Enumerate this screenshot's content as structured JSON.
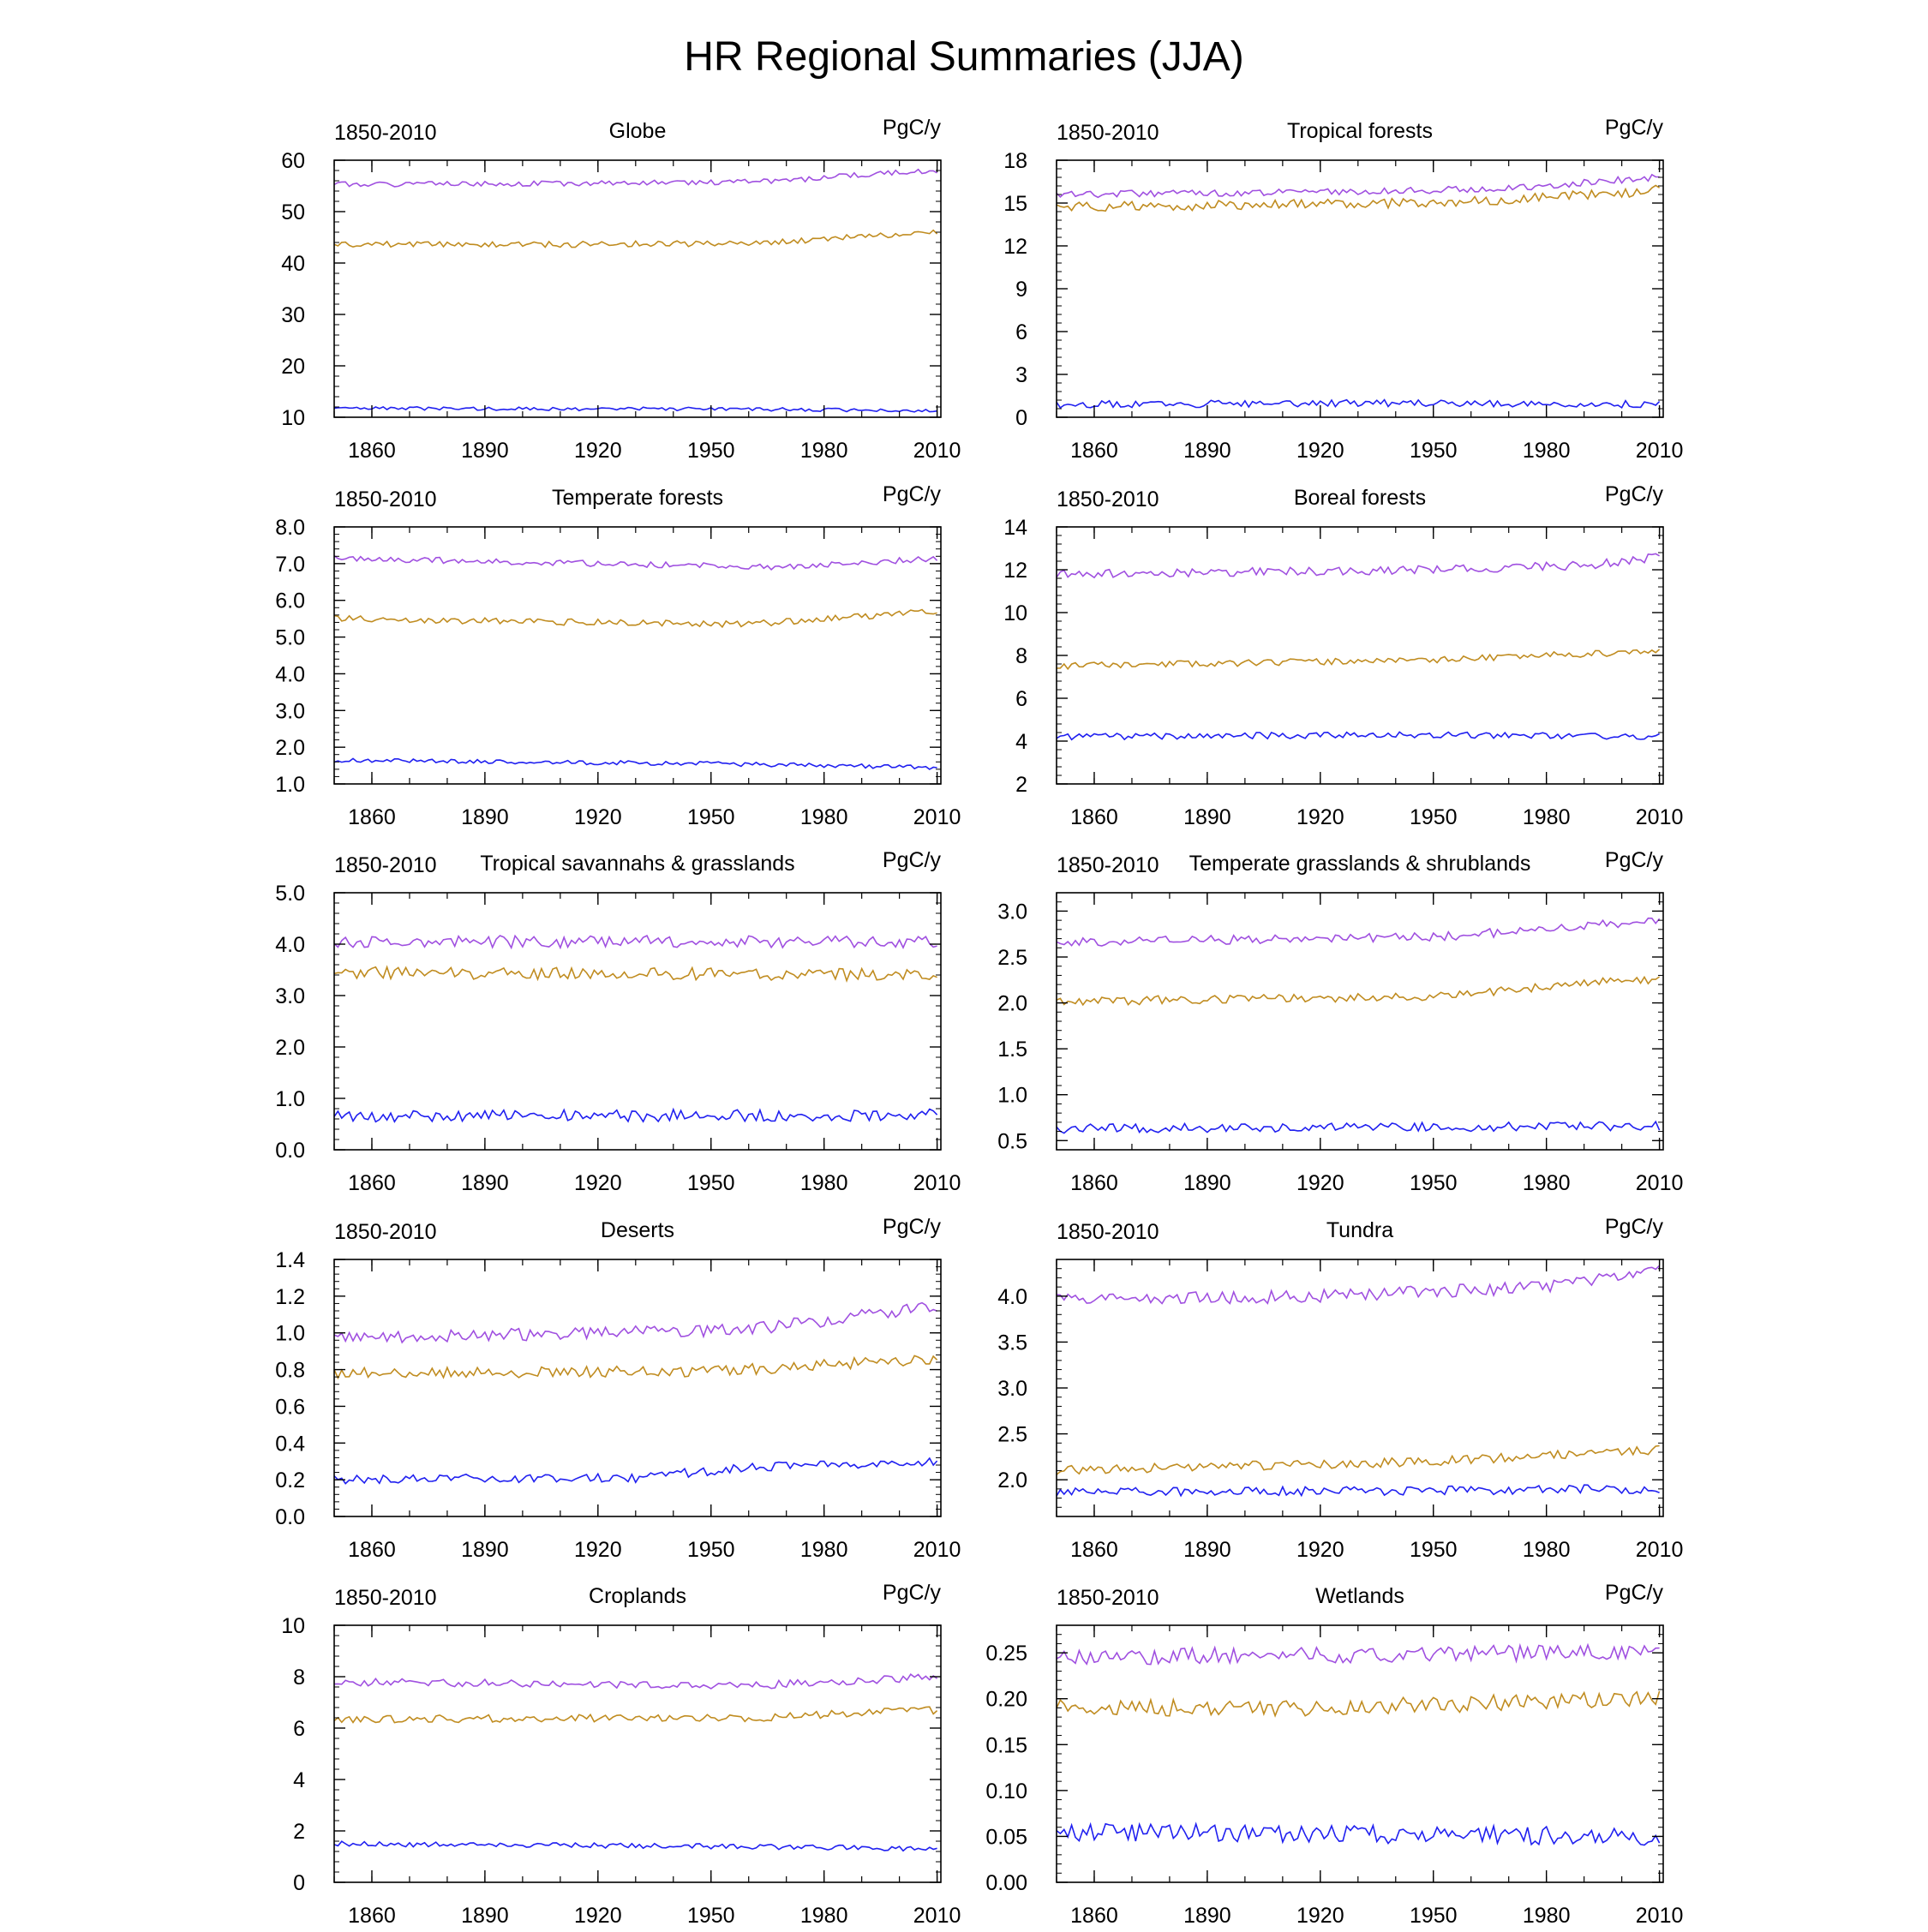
{
  "page_title": "HR Regional Summaries (JJA)",
  "colors": {
    "upper": "#a050e0",
    "middle": "#c08c20",
    "lower": "#2020f0",
    "axis": "#000000"
  },
  "chart_data": [
    {
      "type": "line",
      "title": "Globe",
      "period_label": "1850-2010",
      "units_label": "PgC/y",
      "xlim": [
        1850,
        2011
      ],
      "x_ticks": [
        1860,
        1890,
        1920,
        1950,
        1980,
        2010
      ],
      "ylim": [
        10,
        60
      ],
      "y_ticks": [
        10,
        20,
        30,
        40,
        50,
        60
      ],
      "y_tick_labels": [
        "10",
        "20",
        "30",
        "40",
        "50",
        "60"
      ],
      "series": [
        {
          "trend": [
            [
              1850,
              55.3
            ],
            [
              1900,
              55.4
            ],
            [
              1950,
              55.7
            ],
            [
              1970,
              56.0
            ],
            [
              1990,
              57.2
            ],
            [
              2010,
              58.0
            ]
          ],
          "noise": 0.5,
          "seed": 1
        },
        {
          "trend": [
            [
              1850,
              43.6
            ],
            [
              1900,
              43.6
            ],
            [
              1950,
              43.8
            ],
            [
              1970,
              44.2
            ],
            [
              1990,
              45.2
            ],
            [
              2010,
              46.0
            ]
          ],
          "noise": 0.6,
          "seed": 2
        },
        {
          "trend": [
            [
              1850,
              11.7
            ],
            [
              1950,
              11.6
            ],
            [
              2010,
              11.3
            ]
          ],
          "noise": 0.35,
          "seed": 3
        }
      ]
    },
    {
      "type": "line",
      "title": "Tropical forests",
      "period_label": "1850-2010",
      "units_label": "PgC/y",
      "xlim": [
        1850,
        2011
      ],
      "x_ticks": [
        1860,
        1890,
        1920,
        1950,
        1980,
        2010
      ],
      "ylim": [
        0,
        18
      ],
      "y_ticks": [
        0,
        3,
        6,
        9,
        12,
        15,
        18
      ],
      "y_tick_labels": [
        "0",
        "3",
        "6",
        "9",
        "12",
        "15",
        "18"
      ],
      "series": [
        {
          "trend": [
            [
              1850,
              15.6
            ],
            [
              1950,
              15.9
            ],
            [
              1980,
              16.2
            ],
            [
              2010,
              16.8
            ]
          ],
          "noise": 0.25,
          "seed": 4
        },
        {
          "trend": [
            [
              1850,
              14.7
            ],
            [
              1950,
              15.0
            ],
            [
              1980,
              15.4
            ],
            [
              2010,
              15.9
            ]
          ],
          "noise": 0.35,
          "seed": 5
        },
        {
          "trend": [
            [
              1850,
              0.9
            ],
            [
              1950,
              1.0
            ],
            [
              2010,
              0.9
            ]
          ],
          "noise": 0.25,
          "seed": 6
        }
      ]
    },
    {
      "type": "line",
      "title": "Temperate forests",
      "period_label": "1850-2010",
      "units_label": "PgC/y",
      "xlim": [
        1850,
        2011
      ],
      "x_ticks": [
        1860,
        1890,
        1920,
        1950,
        1980,
        2010
      ],
      "ylim": [
        1,
        8
      ],
      "y_ticks": [
        1,
        2,
        3,
        4,
        5,
        6,
        7,
        8
      ],
      "y_tick_labels": [
        "1.0",
        "2.0",
        "3.0",
        "4.0",
        "5.0",
        "6.0",
        "7.0",
        "8.0"
      ],
      "series": [
        {
          "trend": [
            [
              1850,
              7.15
            ],
            [
              1920,
              7.0
            ],
            [
              1970,
              6.9
            ],
            [
              2010,
              7.15
            ]
          ],
          "noise": 0.08,
          "seed": 7
        },
        {
          "trend": [
            [
              1850,
              5.5
            ],
            [
              1920,
              5.4
            ],
            [
              1960,
              5.35
            ],
            [
              2010,
              5.7
            ]
          ],
          "noise": 0.09,
          "seed": 8
        },
        {
          "trend": [
            [
              1850,
              1.65
            ],
            [
              1950,
              1.55
            ],
            [
              2010,
              1.45
            ]
          ],
          "noise": 0.06,
          "seed": 9
        }
      ]
    },
    {
      "type": "line",
      "title": "Boreal forests",
      "period_label": "1850-2010",
      "units_label": "PgC/y",
      "xlim": [
        1850,
        2011
      ],
      "x_ticks": [
        1860,
        1890,
        1920,
        1950,
        1980,
        2010
      ],
      "ylim": [
        2,
        14
      ],
      "y_ticks": [
        2,
        4,
        6,
        8,
        10,
        12,
        14
      ],
      "y_tick_labels": [
        "2",
        "4",
        "6",
        "8",
        "10",
        "12",
        "14"
      ],
      "series": [
        {
          "trend": [
            [
              1850,
              11.8
            ],
            [
              1950,
              12.0
            ],
            [
              1990,
              12.2
            ],
            [
              2010,
              12.6
            ]
          ],
          "noise": 0.2,
          "seed": 10
        },
        {
          "trend": [
            [
              1850,
              7.5
            ],
            [
              1950,
              7.8
            ],
            [
              2010,
              8.2
            ]
          ],
          "noise": 0.15,
          "seed": 11
        },
        {
          "trend": [
            [
              1850,
              4.2
            ],
            [
              1950,
              4.3
            ],
            [
              2010,
              4.2
            ]
          ],
          "noise": 0.15,
          "seed": 12
        }
      ]
    },
    {
      "type": "line",
      "title": "Tropical savannahs & grasslands",
      "period_label": "1850-2010",
      "units_label": "PgC/y",
      "xlim": [
        1850,
        2011
      ],
      "x_ticks": [
        1860,
        1890,
        1920,
        1950,
        1980,
        2010
      ],
      "ylim": [
        0,
        5
      ],
      "y_ticks": [
        0,
        1,
        2,
        3,
        4,
        5
      ],
      "y_tick_labels": [
        "0.0",
        "1.0",
        "2.0",
        "3.0",
        "4.0",
        "5.0"
      ],
      "series": [
        {
          "trend": [
            [
              1850,
              4.05
            ],
            [
              2010,
              4.05
            ]
          ],
          "noise": 0.12,
          "seed": 13
        },
        {
          "trend": [
            [
              1850,
              3.45
            ],
            [
              2010,
              3.4
            ]
          ],
          "noise": 0.12,
          "seed": 14
        },
        {
          "trend": [
            [
              1850,
              0.65
            ],
            [
              2010,
              0.68
            ]
          ],
          "noise": 0.12,
          "seed": 15
        }
      ]
    },
    {
      "type": "line",
      "title": "Temperate grasslands & shrublands",
      "period_label": "1850-2010",
      "units_label": "PgC/y",
      "xlim": [
        1850,
        2011
      ],
      "x_ticks": [
        1860,
        1890,
        1920,
        1950,
        1980,
        2010
      ],
      "ylim": [
        0.4,
        3.2
      ],
      "y_ticks": [
        0.5,
        1.0,
        1.5,
        2.0,
        2.5,
        3.0
      ],
      "y_tick_labels": [
        "0.5",
        "1.0",
        "1.5",
        "2.0",
        "2.5",
        "3.0"
      ],
      "series": [
        {
          "trend": [
            [
              1850,
              2.66
            ],
            [
              1950,
              2.72
            ],
            [
              1980,
              2.8
            ],
            [
              2010,
              2.9
            ]
          ],
          "noise": 0.05,
          "seed": 16
        },
        {
          "trend": [
            [
              1850,
              2.02
            ],
            [
              1950,
              2.07
            ],
            [
              1990,
              2.22
            ],
            [
              2010,
              2.25
            ]
          ],
          "noise": 0.05,
          "seed": 17
        },
        {
          "trend": [
            [
              1850,
              0.63
            ],
            [
              2010,
              0.66
            ]
          ],
          "noise": 0.05,
          "seed": 18
        }
      ]
    },
    {
      "type": "line",
      "title": "Deserts",
      "period_label": "1850-2010",
      "units_label": "PgC/y",
      "xlim": [
        1850,
        2011
      ],
      "x_ticks": [
        1860,
        1890,
        1920,
        1950,
        1980,
        2010
      ],
      "ylim": [
        0,
        1.4
      ],
      "y_ticks": [
        0,
        0.2,
        0.4,
        0.6,
        0.8,
        1.0,
        1.2,
        1.4
      ],
      "y_tick_labels": [
        "0.0",
        "0.2",
        "0.4",
        "0.6",
        "0.8",
        "1.0",
        "1.2",
        "1.4"
      ],
      "series": [
        {
          "trend": [
            [
              1850,
              0.97
            ],
            [
              1920,
              1.0
            ],
            [
              1960,
              1.02
            ],
            [
              2010,
              1.14
            ]
          ],
          "noise": 0.035,
          "seed": 19
        },
        {
          "trend": [
            [
              1850,
              0.78
            ],
            [
              1950,
              0.79
            ],
            [
              2010,
              0.86
            ]
          ],
          "noise": 0.03,
          "seed": 20
        },
        {
          "trend": [
            [
              1850,
              0.2
            ],
            [
              1930,
              0.21
            ],
            [
              1960,
              0.27
            ],
            [
              2010,
              0.3
            ]
          ],
          "noise": 0.025,
          "seed": 21
        }
      ]
    },
    {
      "type": "line",
      "title": "Tundra",
      "period_label": "1850-2010",
      "units_label": "PgC/y",
      "xlim": [
        1850,
        2011
      ],
      "x_ticks": [
        1860,
        1890,
        1920,
        1950,
        1980,
        2010
      ],
      "ylim": [
        1.6,
        4.4
      ],
      "y_ticks": [
        2.0,
        2.5,
        3.0,
        3.5,
        4.0
      ],
      "y_tick_labels": [
        "2.0",
        "2.5",
        "3.0",
        "3.5",
        "4.0"
      ],
      "series": [
        {
          "trend": [
            [
              1850,
              3.95
            ],
            [
              1920,
              4.0
            ],
            [
              1980,
              4.1
            ],
            [
              2010,
              4.3
            ]
          ],
          "noise": 0.07,
          "seed": 22
        },
        {
          "trend": [
            [
              1850,
              2.1
            ],
            [
              1950,
              2.2
            ],
            [
              2010,
              2.33
            ]
          ],
          "noise": 0.05,
          "seed": 23
        },
        {
          "trend": [
            [
              1850,
              1.86
            ],
            [
              2010,
              1.9
            ]
          ],
          "noise": 0.05,
          "seed": 24
        }
      ]
    },
    {
      "type": "line",
      "title": "Croplands",
      "period_label": "1850-2010",
      "units_label": "PgC/y",
      "xlim": [
        1850,
        2011
      ],
      "x_ticks": [
        1860,
        1890,
        1920,
        1950,
        1980,
        2010
      ],
      "ylim": [
        0,
        10
      ],
      "y_ticks": [
        0,
        2,
        4,
        6,
        8,
        10
      ],
      "y_tick_labels": [
        "0",
        "2",
        "4",
        "6",
        "8",
        "10"
      ],
      "series": [
        {
          "trend": [
            [
              1850,
              7.8
            ],
            [
              1960,
              7.65
            ],
            [
              2010,
              8.0
            ]
          ],
          "noise": 0.15,
          "seed": 25
        },
        {
          "trend": [
            [
              1850,
              6.35
            ],
            [
              1960,
              6.4
            ],
            [
              2010,
              6.7
            ]
          ],
          "noise": 0.15,
          "seed": 26
        },
        {
          "trend": [
            [
              1850,
              1.5
            ],
            [
              1950,
              1.4
            ],
            [
              2010,
              1.3
            ]
          ],
          "noise": 0.1,
          "seed": 27
        }
      ]
    },
    {
      "type": "line",
      "title": "Wetlands",
      "period_label": "1850-2010",
      "units_label": "PgC/y",
      "xlim": [
        1850,
        2011
      ],
      "x_ticks": [
        1860,
        1890,
        1920,
        1950,
        1980,
        2010
      ],
      "ylim": [
        0,
        0.28
      ],
      "y_ticks": [
        0,
        0.05,
        0.1,
        0.15,
        0.2,
        0.25
      ],
      "y_tick_labels": [
        "0.00",
        "0.05",
        "0.10",
        "0.15",
        "0.20",
        "0.25"
      ],
      "series": [
        {
          "trend": [
            [
              1850,
              0.245
            ],
            [
              1920,
              0.248
            ],
            [
              2010,
              0.25
            ]
          ],
          "noise": 0.009,
          "seed": 28
        },
        {
          "trend": [
            [
              1850,
              0.19
            ],
            [
              1920,
              0.19
            ],
            [
              2010,
              0.2
            ]
          ],
          "noise": 0.009,
          "seed": 29
        },
        {
          "trend": [
            [
              1850,
              0.055
            ],
            [
              2010,
              0.05
            ]
          ],
          "noise": 0.01,
          "seed": 30
        }
      ]
    }
  ]
}
